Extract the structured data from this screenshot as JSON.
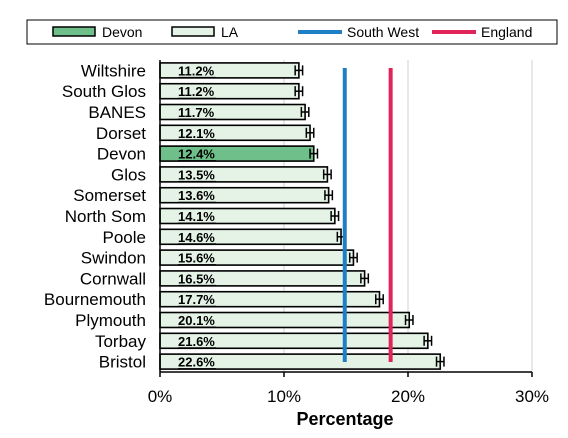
{
  "chart_data": {
    "type": "bar",
    "orientation": "horizontal",
    "title": "",
    "xlabel": "Percentage",
    "ylabel": "",
    "xlim": [
      0,
      30
    ],
    "x_ticks": [
      {
        "value": 0,
        "label": "0%"
      },
      {
        "value": 10,
        "label": "10%"
      },
      {
        "value": 20,
        "label": "20%"
      },
      {
        "value": 30,
        "label": "30%"
      }
    ],
    "grid": "vertical",
    "legend_position": "top",
    "legend": [
      {
        "label": "Devon",
        "kind": "box",
        "color": "#6fbf8b"
      },
      {
        "label": "LA",
        "kind": "box",
        "color": "#e4f3e6"
      },
      {
        "label": "South West",
        "kind": "line",
        "color": "#1f7fc4"
      },
      {
        "label": "England",
        "kind": "line",
        "color": "#e0245a"
      }
    ],
    "highlight_category": "Devon",
    "categories": [
      "Wiltshire",
      "South Glos",
      "BANES",
      "Dorset",
      "Devon",
      "Glos",
      "Somerset",
      "North Som",
      "Poole",
      "Swindon",
      "Cornwall",
      "Bournemouth",
      "Plymouth",
      "Torbay",
      "Bristol"
    ],
    "values": [
      11.2,
      11.2,
      11.7,
      12.1,
      12.4,
      13.5,
      13.6,
      14.1,
      14.6,
      15.6,
      16.5,
      17.7,
      20.1,
      21.6,
      22.6
    ],
    "value_labels": [
      "11.2%",
      "11.2%",
      "11.7%",
      "12.1%",
      "12.4%",
      "13.5%",
      "13.6%",
      "14.1%",
      "14.6%",
      "15.6%",
      "16.5%",
      "17.7%",
      "20.1%",
      "21.6%",
      "22.6%"
    ],
    "error_half_width": 0.3,
    "reference_lines": [
      {
        "name": "South West",
        "value": 14.9,
        "color": "#1f7fc4"
      },
      {
        "name": "England",
        "value": 18.6,
        "color": "#e0245a"
      }
    ],
    "colors": {
      "bar_fill": "#e4f3e6",
      "highlight_fill": "#6fbf8b",
      "bar_stroke": "#000000",
      "grid": "#d0d0d0"
    }
  }
}
